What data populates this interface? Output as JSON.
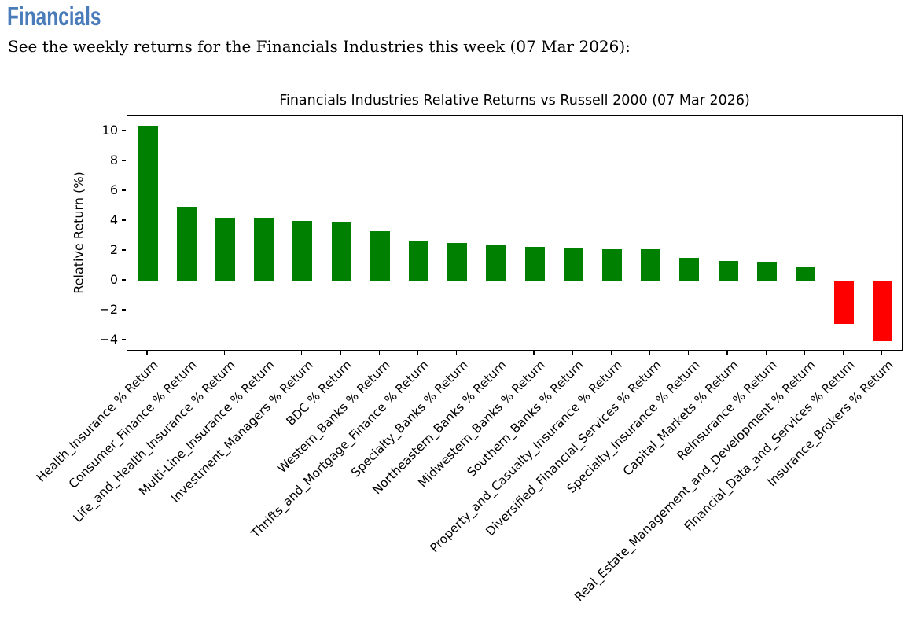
{
  "page": {
    "heading": "Financials",
    "description": "See the weekly returns for the Financials Industries this week (07 Mar 2026):"
  },
  "colors": {
    "heading_blue": "#4a7cba",
    "positive_bar": "#008000",
    "negative_bar": "#ff0000",
    "axis": "#000000"
  },
  "chart_data": {
    "type": "bar",
    "title": "Financials Industries Relative Returns vs Russell 2000 (07 Mar 2026)",
    "xlabel": "",
    "ylabel": "Relative Return (%)",
    "categories": [
      "Health_Insurance % Return",
      "Consumer_Finance % Return",
      "Life_and_Health_Insurance % Return",
      "Multi-Line_Insurance % Return",
      "Investment_Managers % Return",
      "BDC % Return",
      "Western_Banks % Return",
      "Thrifts_and_Mortgage_Finance % Return",
      "Specialty_Banks % Return",
      "Northeastern_Banks % Return",
      "Midwestern_Banks % Return",
      "Southern_Banks % Return",
      "Property_and_Casualty_Insurance % Return",
      "Diversified_Financial_Services % Return",
      "Specialty_Insurance % Return",
      "Capital_Markets % Return",
      "ReInsurance % Return",
      "Real_Estate_Management_and_Development % Return",
      "Financial_Data_and_Services % Return",
      "Insurance_Brokers % Return"
    ],
    "values": [
      10.35,
      4.95,
      4.2,
      4.2,
      4.0,
      3.95,
      3.3,
      2.7,
      2.5,
      2.4,
      2.25,
      2.2,
      2.1,
      2.1,
      1.55,
      1.3,
      1.25,
      0.9,
      -2.9,
      -4.05
    ],
    "yticks": [
      10,
      8,
      6,
      4,
      2,
      0,
      -2,
      -4
    ],
    "ylim": [
      -4.75,
      11.05
    ],
    "grid": false,
    "legend": "none",
    "color_rule": "green if value >= 0 else red",
    "xtick_rotation": 45
  }
}
